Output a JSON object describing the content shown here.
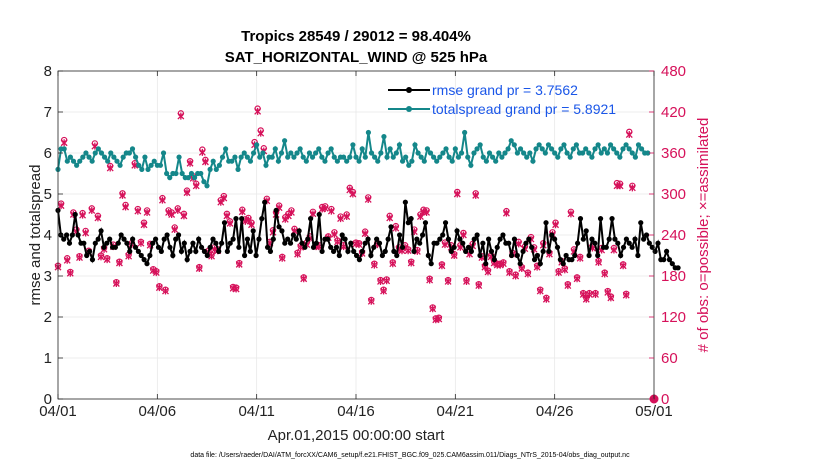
{
  "chart_data": {
    "type": "line",
    "title": "Tropics 28549 / 29012 = 98.404%",
    "subtitle": "SAT_HORIZONTAL_WIND @ 525 hPa",
    "xlabel": "Apr.01,2015 00:00:00 start",
    "ylabel": "rmse and totalspread",
    "ylabel_right": "# of obs: o=possible; ×=assimilated",
    "x_tick_labels": [
      "04/01",
      "04/06",
      "04/11",
      "04/16",
      "04/21",
      "04/26",
      "05/01"
    ],
    "y_tick_labels": [
      "0",
      "1",
      "2",
      "3",
      "4",
      "5",
      "6",
      "7",
      "8"
    ],
    "y2_tick_labels": [
      "0",
      "60",
      "120",
      "180",
      "240",
      "300",
      "360",
      "420",
      "480"
    ],
    "xlim": [
      0,
      30
    ],
    "ylim": [
      0,
      8
    ],
    "y2lim": [
      0,
      480
    ],
    "grid": true,
    "legend_position": "top-right",
    "footer": "data file: /Users/raeder/DAI/ATM_forcXX/CAM6_setup/f.e21.FHIST_BGC.f09_025.CAM6assim.011/Diags_NTrS_2015-04/obs_diag_output.nc",
    "colors": {
      "rmse": "#000000",
      "totalspread": "#14878a",
      "obs": "#d6115a",
      "legend_text": "#1a56e8",
      "grid": "#e8e8e8"
    },
    "series": [
      {
        "name": "rmse grand pr = 3.7562",
        "axis": "left",
        "marker": "star",
        "values": [
          4.6,
          4.0,
          3.9,
          4.0,
          3.8,
          4.0,
          4.5,
          4.0,
          3.8,
          3.8,
          3.5,
          3.6,
          3.4,
          3.8,
          3.9,
          4.1,
          3.7,
          3.8,
          3.9,
          3.7,
          3.7,
          3.8,
          4.0,
          3.9,
          3.8,
          3.6,
          3.9,
          3.7,
          3.6,
          3.5,
          3.4,
          3.3,
          3.5,
          3.8,
          3.9,
          3.7,
          3.6,
          3.9,
          4.0,
          3.7,
          3.5,
          3.9,
          4.0,
          3.6,
          3.8,
          3.4,
          3.6,
          3.8,
          3.6,
          3.9,
          3.7,
          3.6,
          3.5,
          3.7,
          3.9,
          3.8,
          3.6,
          3.8,
          4.3,
          3.6,
          3.8,
          3.9,
          4.4,
          3.7,
          4.4,
          3.5,
          3.9,
          3.6,
          4.1,
          3.5,
          3.9,
          4.4,
          4.8,
          3.7,
          3.6,
          3.9,
          4.6,
          4.2,
          4.1,
          3.8,
          3.9,
          3.8,
          4.0,
          3.9,
          4.1,
          3.8,
          3.7,
          3.9,
          4.4,
          3.7,
          3.8,
          4.5,
          3.6,
          3.9,
          3.9,
          3.7,
          3.6,
          3.7,
          3.5,
          4.0,
          3.9,
          3.6,
          3.8,
          3.6,
          3.5,
          3.4,
          3.6,
          3.8,
          3.9,
          3.5,
          3.7,
          3.9,
          3.8,
          3.5,
          3.6,
          3.9,
          4.2,
          3.6,
          3.5,
          4.0,
          3.7,
          4.8,
          4.3,
          4.4,
          3.6,
          3.9,
          3.8,
          4.0,
          4.3,
          3.5,
          3.3,
          3.8,
          3.8,
          3.9,
          4.0,
          4.3,
          3.9,
          3.6,
          3.7,
          4.1,
          3.9,
          3.8,
          3.6,
          3.7,
          3.6,
          3.9,
          4.0,
          3.5,
          3.8,
          3.3,
          3.9,
          3.6,
          3.4,
          3.7,
          3.9,
          4.0,
          3.8,
          3.8,
          3.5,
          3.9,
          3.5,
          3.3,
          3.6,
          3.8,
          3.9,
          3.7,
          3.4,
          3.5,
          3.3,
          3.6,
          4.3,
          3.6,
          4.0,
          3.9,
          3.7,
          3.4,
          3.3,
          3.5,
          3.4,
          3.4,
          3.5,
          3.8,
          4.4,
          3.9,
          4.1,
          3.5,
          3.9,
          3.8,
          3.5,
          4.4,
          3.7,
          3.7,
          3.9,
          4.4,
          3.9,
          3.8,
          3.5,
          3.7,
          3.9,
          3.8,
          3.7,
          3.9,
          3.5,
          4.3,
          3.9,
          4.0,
          3.8,
          3.7,
          3.6,
          3.8,
          3.4,
          3.4,
          3.6,
          3.4,
          3.3,
          3.2,
          3.2
        ],
        "x_start": 0,
        "x_step": 0.1445
      },
      {
        "name": "totalspread grand pr = 5.8921",
        "axis": "left",
        "marker": "dot",
        "values": [
          5.6,
          6.1,
          6.1,
          5.8,
          5.9,
          5.8,
          5.7,
          5.8,
          5.9,
          6.0,
          5.9,
          5.8,
          6.0,
          6.1,
          6.0,
          5.9,
          5.8,
          6.0,
          5.9,
          5.8,
          5.7,
          5.9,
          6.0,
          6.0,
          6.1,
          5.9,
          5.7,
          5.6,
          5.9,
          5.6,
          5.7,
          5.8,
          5.7,
          5.7,
          6.0,
          5.5,
          5.4,
          5.5,
          5.5,
          5.9,
          5.5,
          5.4,
          5.4,
          5.5,
          5.4,
          5.5,
          5.5,
          5.3,
          5.2,
          5.6,
          5.8,
          5.6,
          5.7,
          5.9,
          6.1,
          5.8,
          5.8,
          5.9,
          5.6,
          5.9,
          6.0,
          5.9,
          5.8,
          6.0,
          6.2,
          5.9,
          6.0,
          5.7,
          5.9,
          5.9,
          6.1,
          5.8,
          6.0,
          6.3,
          5.9,
          6.0,
          5.9,
          6.0,
          6.1,
          5.9,
          5.8,
          6.0,
          5.9,
          6.0,
          6.1,
          5.9,
          5.8,
          6.0,
          6.1,
          5.9,
          5.8,
          5.9,
          5.9,
          5.8,
          5.9,
          6.2,
          5.9,
          5.8,
          6.1,
          5.9,
          6.5,
          6.0,
          5.9,
          5.8,
          6.0,
          6.4,
          5.9,
          6.1,
          5.9,
          6.0,
          6.2,
          5.8,
          5.9,
          5.7,
          5.8,
          6.2,
          6.0,
          5.9,
          5.8,
          6.1,
          6.0,
          5.9,
          5.8,
          5.9,
          6.0,
          6.1,
          5.9,
          5.8,
          6.1,
          5.9,
          6.0,
          6.5,
          5.9,
          5.7,
          6.0,
          6.1,
          6.2,
          5.9,
          5.8,
          6.0,
          5.9,
          5.8,
          6.0,
          5.9,
          6.0,
          6.1,
          6.3,
          6.2,
          6.0,
          6.1,
          6.0,
          5.9,
          6.0,
          5.8,
          6.1,
          6.2,
          6.1,
          6.0,
          6.2,
          6.1,
          6.0,
          5.9,
          6.1,
          6.2,
          6.0,
          5.9,
          6.1,
          6.2,
          6.0,
          6.0,
          6.1,
          6.0,
          5.9,
          6.1,
          6.2,
          6.0,
          6.1,
          6.0,
          6.2,
          6.1,
          6.0,
          5.9,
          6.1,
          6.2,
          6.1,
          6.0,
          5.9,
          6.2,
          6.1,
          6.0,
          6.0
        ],
        "x_start": 0,
        "x_step": 0.15625
      },
      {
        "name": "obs possible",
        "axis": "right",
        "marker": "circle",
        "values": [
          195,
          286,
          379,
          206,
          186,
          273,
          248,
          209,
          272,
          246,
          217,
          279,
          374,
          268,
          210,
          221,
          206,
          341,
          226,
          171,
          201,
          301,
          284,
          211,
          228,
          345,
          278,
          230,
          258,
          276,
          227,
          190,
          187,
          165,
          294,
          160,
          276,
          273,
          251,
          279,
          418,
          271,
          305,
          348,
          326,
          315,
          193,
          365,
          350,
          217,
          211,
          222,
          219,
          291,
          297,
          271,
          260,
          164,
          163,
          199,
          277,
          263,
          265,
          258,
          376,
          425,
          393,
          367,
          293,
          230,
          247,
          273,
          283,
          208,
          266,
          271,
          276,
          249,
          214,
          224,
          178,
          229,
          238,
          274,
          226,
          225,
          281,
          282,
          238,
          278,
          244,
          232,
          267,
          225,
          270,
          309,
          303,
          229,
          228,
          215,
          245,
          295,
          145,
          198,
          228,
          174,
          160,
          175,
          268,
          200,
          253,
          222,
          219,
          225,
          219,
          201,
          248,
          218,
          270,
          277,
          276,
          176,
          134,
          118,
          119,
          197,
          229,
          174,
          225,
          212,
          303,
          225,
          243,
          174,
          215,
          227,
          301,
          168,
          209,
          195,
          188,
          210,
          201,
          198,
          198,
          200,
          275,
          187,
          214,
          182,
          230,
          193,
          223,
          185,
          237,
          222,
          195,
          160,
          228,
          148,
          214,
          244,
          258,
          187,
          202,
          191,
          168,
          274,
          219,
          178,
          208,
          155,
          148,
          155,
          224,
          155,
          202,
          221,
          185,
          158,
          150,
          221,
          316,
          315,
          197,
          154,
          391,
          312
        ],
        "x_start": 0,
        "x_step": 0.1546
      },
      {
        "name": "obs assimilated",
        "axis": "right",
        "marker": "x",
        "values": [
          193,
          283,
          375,
          203,
          184,
          270,
          245,
          207,
          269,
          243,
          215,
          276,
          370,
          265,
          208,
          219,
          204,
          338,
          223,
          169,
          199,
          298,
          281,
          209,
          226,
          342,
          275,
          228,
          255,
          273,
          225,
          188,
          185,
          163,
          291,
          158,
          273,
          270,
          248,
          276,
          414,
          268,
          302,
          345,
          323,
          312,
          191,
          361,
          347,
          215,
          209,
          219,
          217,
          288,
          294,
          268,
          257,
          162,
          161,
          197,
          274,
          260,
          262,
          255,
          372,
          421,
          389,
          363,
          290,
          228,
          244,
          270,
          280,
          206,
          263,
          268,
          273,
          246,
          212,
          222,
          176,
          226,
          235,
          271,
          223,
          223,
          278,
          279,
          236,
          275,
          241,
          230,
          264,
          223,
          267,
          306,
          300,
          227,
          226,
          213,
          242,
          292,
          143,
          196,
          226,
          172,
          158,
          173,
          265,
          198,
          250,
          219,
          217,
          222,
          217,
          199,
          245,
          216,
          267,
          274,
          273,
          174,
          132,
          116,
          117,
          195,
          226,
          172,
          222,
          210,
          300,
          222,
          240,
          172,
          212,
          224,
          298,
          166,
          207,
          193,
          186,
          208,
          199,
          196,
          196,
          198,
          272,
          185,
          212,
          180,
          227,
          191,
          220,
          183,
          234,
          219,
          193,
          158,
          225,
          146,
          212,
          241,
          255,
          185,
          200,
          189,
          166,
          271,
          216,
          176,
          206,
          153,
          146,
          153,
          221,
          153,
          200,
          218,
          183,
          156,
          148,
          218,
          312,
          312,
          195,
          152,
          387,
          309
        ],
        "x_start": 0,
        "x_step": 0.1546
      }
    ]
  }
}
